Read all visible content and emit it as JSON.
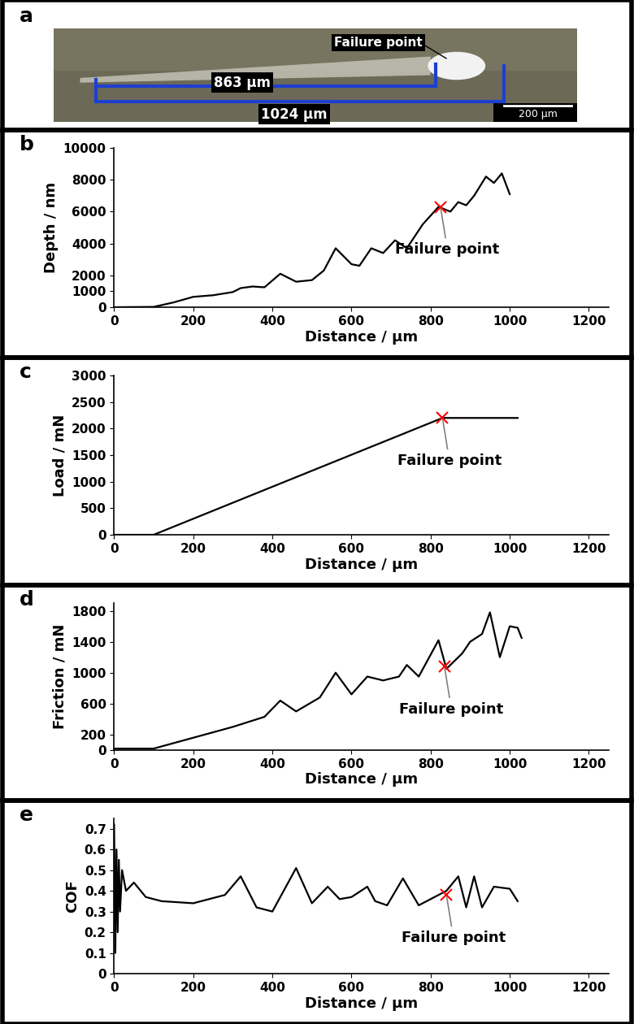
{
  "image": {
    "panel_label": "a",
    "failure_label": "Failure point",
    "failure_length_label": "863 µm",
    "total_length_label": "1024 µm",
    "scale_bar_label": "200 µm"
  },
  "chart_data": [
    {
      "panel_label": "b",
      "type": "line",
      "x_label": "Distance / µm",
      "y_label": "Depth / nm",
      "color": "#000000",
      "x": [
        0,
        50,
        100,
        150,
        200,
        250,
        300,
        320,
        350,
        380,
        420,
        460,
        500,
        530,
        560,
        600,
        620,
        650,
        680,
        710,
        740,
        780,
        820,
        850,
        870,
        890,
        910,
        940,
        960,
        980,
        1000
      ],
      "values": [
        0,
        10,
        20,
        300,
        650,
        750,
        950,
        1200,
        1300,
        1250,
        2100,
        1600,
        1700,
        2300,
        3700,
        2700,
        2600,
        3700,
        3400,
        4200,
        3700,
        5200,
        6300,
        6000,
        6600,
        6400,
        7000,
        8200,
        7800,
        8400,
        7100
      ],
      "xlim": [
        0,
        1250
      ],
      "xticks": [
        0,
        200,
        400,
        600,
        800,
        1000,
        1200
      ],
      "ylim": [
        0,
        10000
      ],
      "yticks": [
        0,
        1000,
        2000,
        4000,
        6000,
        8000,
        10000
      ],
      "annotations": [
        {
          "text": "Failure point",
          "x": 825,
          "y": 6300
        }
      ]
    },
    {
      "panel_label": "c",
      "type": "line",
      "x_label": "Distance / µm",
      "y_label": "Load / mN",
      "color": "#000000",
      "x": [
        0,
        100,
        830,
        1020
      ],
      "values": [
        0,
        0,
        2200,
        2200
      ],
      "xlim": [
        0,
        1250
      ],
      "xticks": [
        0,
        200,
        400,
        600,
        800,
        1000,
        1200
      ],
      "ylim": [
        0,
        3000
      ],
      "yticks": [
        0,
        500,
        1000,
        1500,
        2000,
        2500,
        3000
      ],
      "annotations": [
        {
          "text": "Failure point",
          "x": 830,
          "y": 2200
        }
      ]
    },
    {
      "panel_label": "d",
      "type": "line",
      "x_label": "Distance / µm",
      "y_label": "Friction / mN",
      "color": "#000000",
      "x": [
        0,
        100,
        200,
        300,
        380,
        420,
        460,
        520,
        560,
        600,
        640,
        680,
        720,
        740,
        770,
        820,
        840,
        880,
        900,
        930,
        950,
        975,
        1000,
        1020,
        1030
      ],
      "values": [
        20,
        20,
        160,
        300,
        430,
        640,
        500,
        680,
        1000,
        720,
        950,
        900,
        950,
        1100,
        950,
        1420,
        1050,
        1250,
        1400,
        1500,
        1780,
        1200,
        1600,
        1580,
        1450
      ],
      "xlim": [
        0,
        1250
      ],
      "xticks": [
        0,
        200,
        400,
        600,
        800,
        1000,
        1200
      ],
      "ylim": [
        0,
        1900
      ],
      "yticks": [
        0,
        200,
        600,
        1000,
        1400,
        1800
      ],
      "annotations": [
        {
          "text": "Failure point",
          "x": 835,
          "y": 1080
        }
      ]
    },
    {
      "panel_label": "e",
      "type": "line",
      "x_label": "Distance / µm",
      "y_label": "COF",
      "color": "#000000",
      "x": [
        0,
        3,
        6,
        9,
        12,
        15,
        20,
        30,
        50,
        80,
        120,
        200,
        280,
        320,
        360,
        400,
        460,
        500,
        540,
        570,
        600,
        640,
        660,
        690,
        730,
        770,
        800,
        840,
        870,
        890,
        910,
        930,
        960,
        1000,
        1020
      ],
      "values": [
        0.72,
        0.1,
        0.6,
        0.2,
        0.55,
        0.3,
        0.5,
        0.4,
        0.44,
        0.37,
        0.35,
        0.34,
        0.38,
        0.47,
        0.32,
        0.3,
        0.51,
        0.34,
        0.42,
        0.36,
        0.37,
        0.42,
        0.35,
        0.33,
        0.46,
        0.33,
        0.36,
        0.4,
        0.47,
        0.32,
        0.47,
        0.32,
        0.42,
        0.41,
        0.35
      ],
      "xlim": [
        0,
        1250
      ],
      "xticks": [
        0,
        200,
        400,
        600,
        800,
        1000,
        1200
      ],
      "ylim": [
        0,
        0.75
      ],
      "yticks": [
        0,
        0.1,
        0.2,
        0.3,
        0.4,
        0.5,
        0.6,
        0.7
      ],
      "annotations": [
        {
          "text": "Failure point",
          "x": 840,
          "y": 0.38
        }
      ]
    }
  ]
}
